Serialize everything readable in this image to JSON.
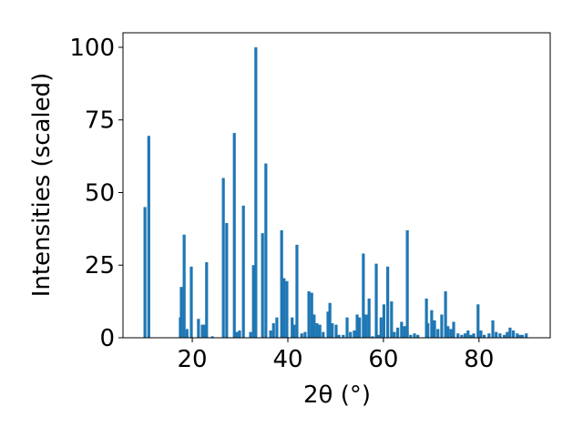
{
  "chart_data": {
    "type": "bar",
    "xlabel": "2θ (°)",
    "ylabel": "Intensities (scaled)",
    "color": "#1f77b4",
    "x": [
      10.1,
      10.9,
      17.5,
      17.7,
      18.3,
      18.9,
      19.8,
      21.3,
      22.1,
      22.5,
      23.0,
      24.2,
      26.5,
      27.2,
      28.8,
      29.3,
      29.9,
      30.7,
      32.2,
      32.8,
      33.3,
      34.7,
      35.4,
      36.4,
      37.0,
      37.7,
      38.7,
      39.2,
      39.8,
      40.9,
      41.3,
      41.9,
      42.9,
      43.6,
      44.4,
      45.0,
      45.5,
      46.1,
      46.7,
      47.4,
      48.4,
      48.8,
      49.3,
      50.1,
      50.7,
      51.6,
      52.4,
      53.1,
      53.9,
      54.5,
      55.0,
      55.8,
      56.4,
      57.0,
      57.7,
      58.5,
      59.0,
      59.5,
      60.1,
      60.9,
      61.7,
      62.3,
      63.0,
      63.8,
      64.4,
      65.0,
      65.7,
      66.5,
      67.2,
      69.0,
      69.3,
      70.1,
      70.7,
      71.4,
      72.2,
      73.0,
      73.5,
      74.1,
      74.7,
      75.6,
      76.4,
      77.1,
      77.7,
      78.3,
      78.9,
      79.8,
      80.4,
      81.1,
      82.1,
      82.9,
      83.6,
      84.4,
      85.3,
      85.9,
      86.5,
      87.2,
      88.0,
      88.6,
      89.1,
      89.9
    ],
    "values": [
      45,
      69.5,
      7,
      17.5,
      35.5,
      3,
      24.5,
      6.5,
      4.5,
      4.5,
      26,
      0.5,
      55,
      39.5,
      70.5,
      2,
      2.5,
      45.5,
      2,
      25,
      100,
      36,
      60,
      2.5,
      5,
      7,
      37,
      20.5,
      19.5,
      7,
      4.5,
      32,
      1.5,
      2,
      16,
      15.5,
      8,
      5,
      4.5,
      2,
      9,
      12,
      5,
      4.5,
      1,
      1,
      7,
      2,
      2.5,
      8,
      7,
      29,
      8,
      13.5,
      0.5,
      25.5,
      1,
      7,
      11.5,
      24.5,
      12.5,
      2,
      3.5,
      5.5,
      4,
      37,
      1,
      1.5,
      1,
      13.5,
      5,
      9.5,
      6,
      3,
      8,
      16,
      4,
      3,
      5.5,
      1.5,
      1,
      1.5,
      2.5,
      1,
      1.5,
      11.5,
      2.5,
      1,
      1.5,
      6,
      2,
      1.5,
      1,
      2,
      3.5,
      2.5,
      1.5,
      1,
      1,
      1.5
    ],
    "xlim": [
      5.5,
      94.9
    ],
    "xticks": [
      20,
      40,
      60,
      80
    ],
    "ylim": [
      0,
      105
    ],
    "yticks": [
      0,
      25,
      50,
      75,
      100
    ]
  }
}
